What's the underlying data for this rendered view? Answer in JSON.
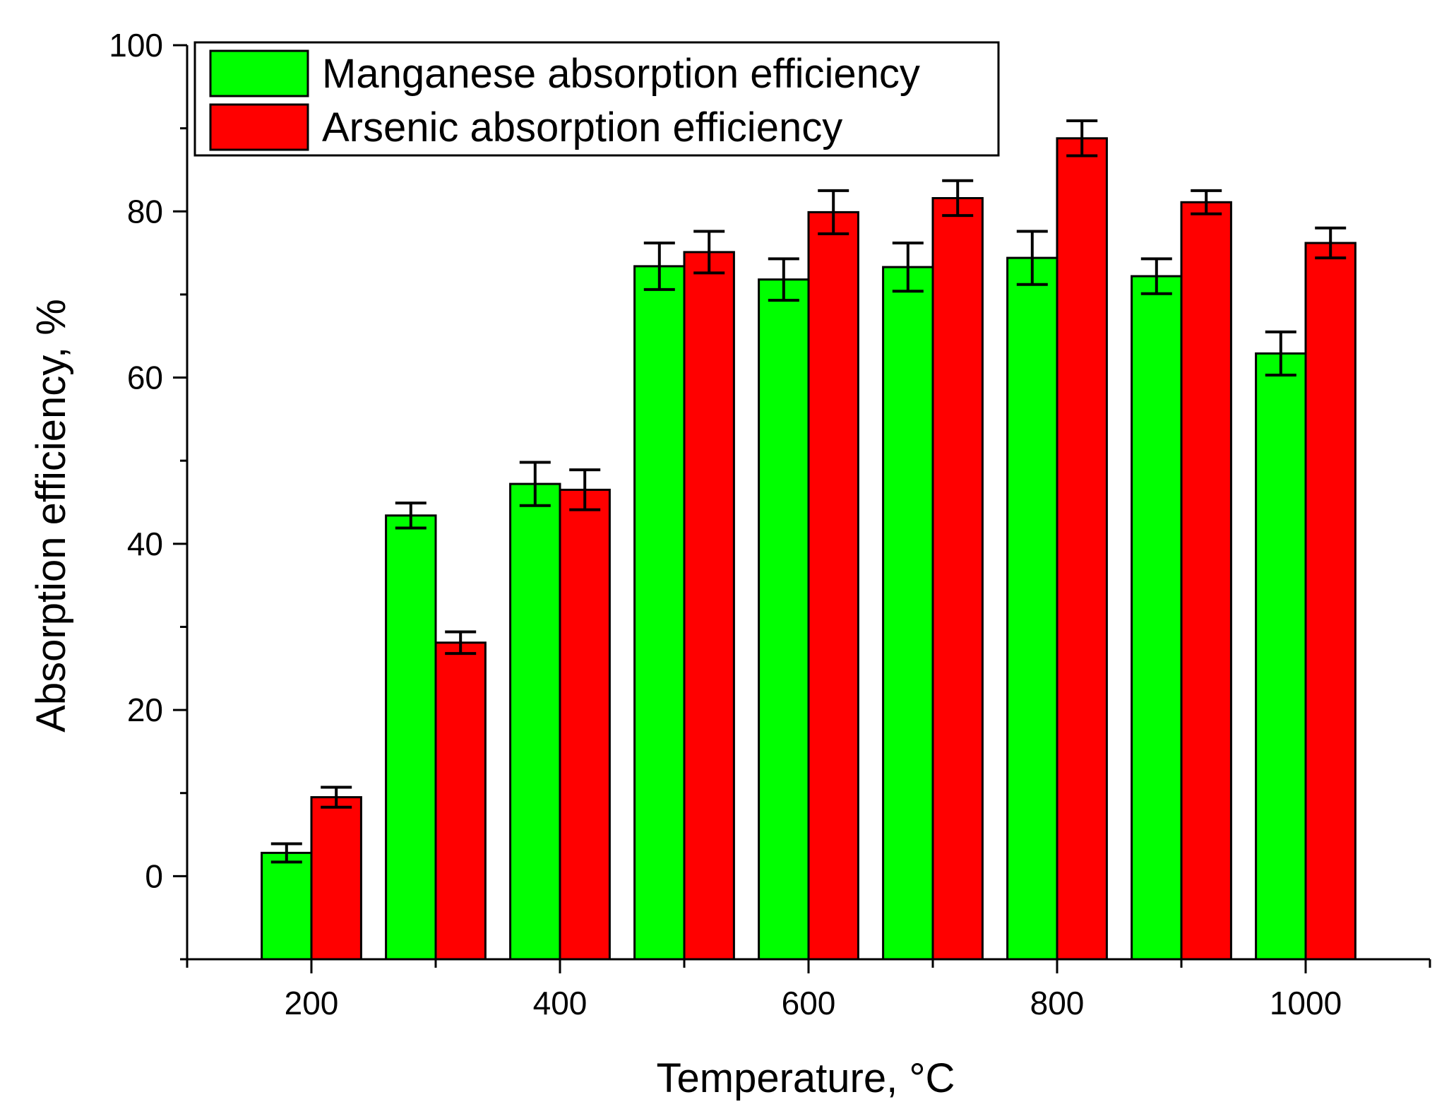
{
  "chart_data": {
    "type": "bar",
    "title": "",
    "xlabel": "Temperature, °C",
    "ylabel": "Absorption efficiency, %",
    "xlim": [
      100,
      1100
    ],
    "ylim": [
      -10,
      100
    ],
    "x_ticks": [
      "200",
      "400",
      "600",
      "800",
      "1000"
    ],
    "y_ticks": [
      "0",
      "20",
      "40",
      "60",
      "80",
      "100"
    ],
    "x": [
      200,
      300,
      400,
      500,
      600,
      700,
      800,
      900,
      1000
    ],
    "legend_position": "top-left",
    "series": [
      {
        "name": "Manganese absorption efficiency",
        "color": "#00ff00",
        "values": [
          2.8,
          43.4,
          47.2,
          73.4,
          71.8,
          73.3,
          74.4,
          72.2,
          62.9
        ],
        "errors": [
          1.1,
          1.5,
          2.6,
          2.8,
          2.5,
          2.9,
          3.2,
          2.1,
          2.6
        ]
      },
      {
        "name": "Arsenic absorption efficiency",
        "color": "#ff0000",
        "values": [
          9.5,
          28.1,
          46.5,
          75.1,
          79.9,
          81.6,
          88.8,
          81.1,
          76.2
        ],
        "errors": [
          1.2,
          1.3,
          2.4,
          2.5,
          2.6,
          2.1,
          2.1,
          1.4,
          1.8
        ]
      }
    ]
  }
}
